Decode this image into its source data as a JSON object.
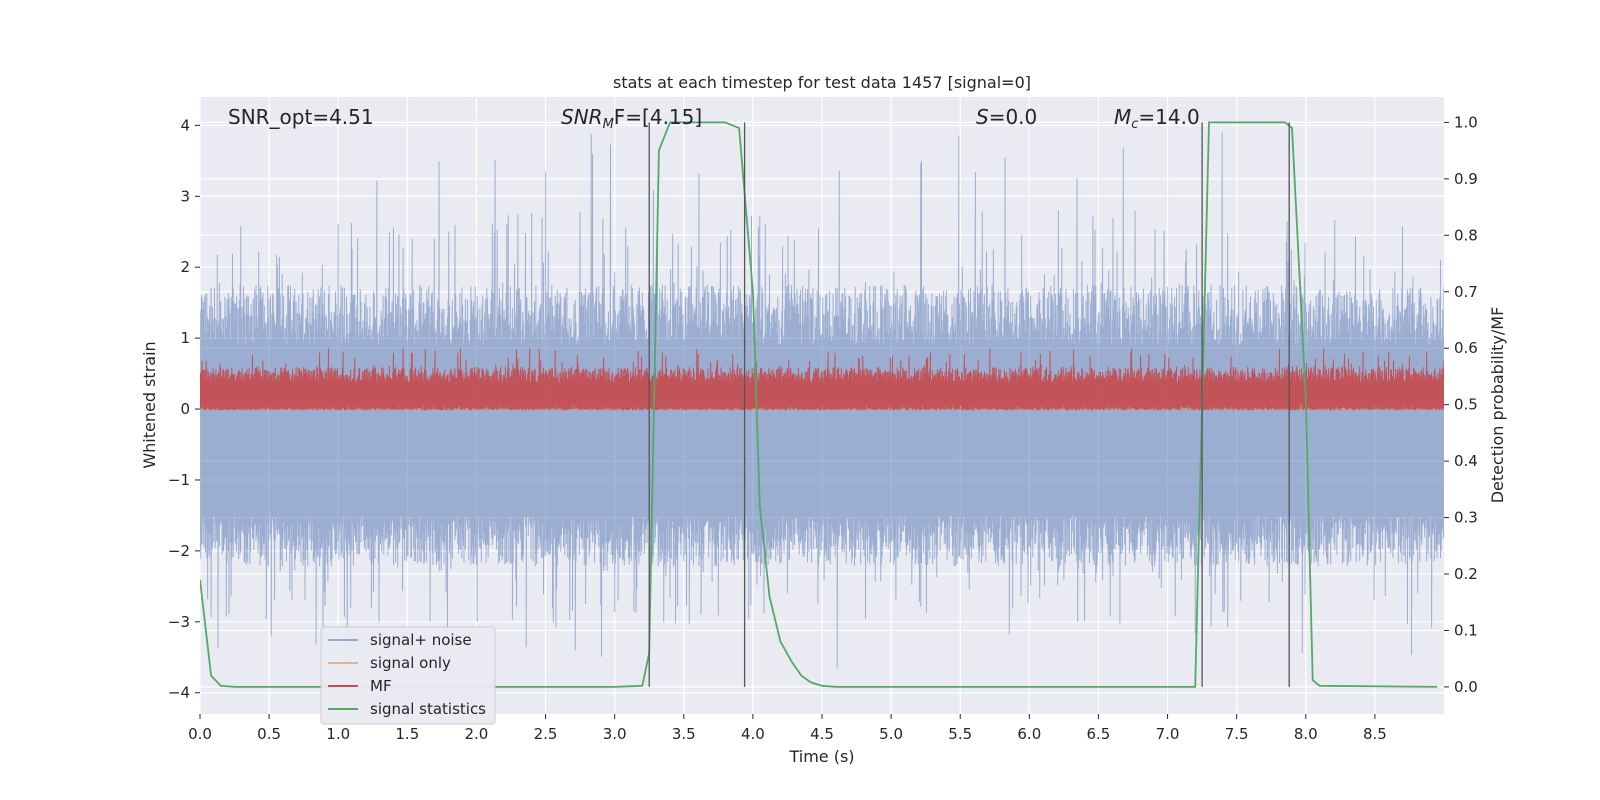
{
  "chart_data": {
    "type": "line",
    "title": "stats at each timestep for test data 1457 [signal=0]",
    "xlabel": "Time (s)",
    "ylabel": "Whitened strain",
    "ylabel_right": "Detection probability/MF",
    "xlim": [
      0,
      9.0
    ],
    "ylim": [
      -4.3,
      4.4
    ],
    "ylim_right": [
      -0.048,
      1.045
    ],
    "xticks": [
      0.0,
      0.5,
      1.0,
      1.5,
      2.0,
      2.5,
      3.0,
      3.5,
      4.0,
      4.5,
      5.0,
      5.5,
      6.0,
      6.5,
      7.0,
      7.5,
      8.0,
      8.5
    ],
    "yticks": [
      -4,
      -3,
      -2,
      -1,
      0,
      1,
      2,
      3,
      4
    ],
    "yticks_right": [
      0.0,
      0.1,
      0.2,
      0.3,
      0.4,
      0.5,
      0.6,
      0.7,
      0.8,
      0.9,
      1.0
    ],
    "grid": true,
    "legend_position": "lower-left",
    "annotations": [
      {
        "key": "snr_opt",
        "text": "SNR_opt=4.51"
      },
      {
        "key": "snr_mf",
        "prefix": "SNR",
        "sub": "M",
        "suffix": "F=[4.15]"
      },
      {
        "key": "s",
        "prefix": "S",
        "suffix": "=0.0"
      },
      {
        "key": "mc",
        "prefix": "M",
        "sub": "c",
        "suffix": "=14.0"
      }
    ],
    "vlines": [
      3.25,
      3.94,
      7.25,
      7.88
    ],
    "series": [
      {
        "name": "signal+ noise",
        "axis": "left",
        "color": "#4c72b0",
        "style": "noise",
        "x_range": [
          0,
          9.0
        ],
        "band_upper": [
          0.9,
          2.8
        ],
        "band_lower": [
          -1.5,
          -3.1
        ],
        "peak_max": 4.0,
        "peak_min": -3.8
      },
      {
        "name": "signal only",
        "axis": "left",
        "color": "#dd8452",
        "style": "line",
        "x": [
          0,
          9.0
        ],
        "values": [
          0,
          0
        ]
      },
      {
        "name": "MF",
        "axis": "right",
        "color": "#c44e52",
        "style": "noise",
        "x_range": [
          0,
          9.0
        ],
        "band_upper": [
          0.54,
          0.6
        ],
        "band_lower": [
          0.49,
          0.5
        ],
        "peak_max": 0.6,
        "peak_min": 0.49
      },
      {
        "name": "signal statistics",
        "axis": "right",
        "color": "#55a868",
        "style": "line",
        "x": [
          0.0,
          0.08,
          0.15,
          0.25,
          3.0,
          3.2,
          3.25,
          3.32,
          3.4,
          3.8,
          3.9,
          4.0,
          4.05,
          4.12,
          4.2,
          4.28,
          4.35,
          4.42,
          4.5,
          4.6,
          7.0,
          7.2,
          7.3,
          7.85,
          7.9,
          8.0,
          8.05,
          8.1,
          8.95
        ],
        "values": [
          0.19,
          0.02,
          0.002,
          0.0,
          0.0,
          0.002,
          0.06,
          0.95,
          1.0,
          1.0,
          0.99,
          0.7,
          0.32,
          0.16,
          0.08,
          0.045,
          0.02,
          0.008,
          0.002,
          0.0,
          0.0,
          0.0,
          1.0,
          1.0,
          0.99,
          0.51,
          0.012,
          0.002,
          0.0
        ]
      }
    ]
  }
}
